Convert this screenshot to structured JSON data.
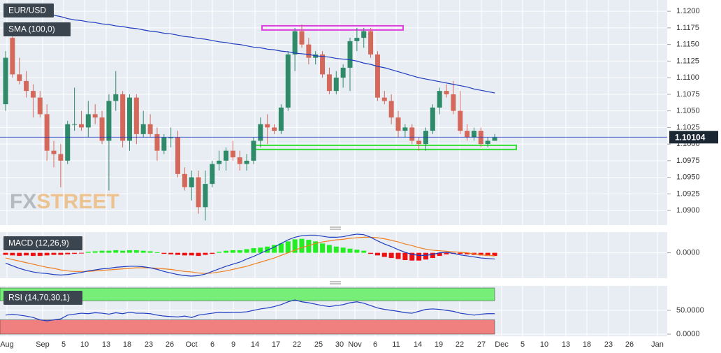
{
  "watermark": {
    "fx": "FX",
    "street": "STREET"
  },
  "chart_data": [
    {
      "type": "candlestick",
      "title": "EUR/USD",
      "up_color": "#2f8a6a",
      "down_color": "#d4685a",
      "ylim": [
        1.0878,
        1.1217
      ],
      "yticks": [
        {
          "value": 1.12,
          "label": "1.1200"
        },
        {
          "value": 1.1175,
          "label": "1.1175"
        },
        {
          "value": 1.115,
          "label": "1.1150"
        },
        {
          "value": 1.1125,
          "label": "1.1125"
        },
        {
          "value": 1.11,
          "label": "1.1100"
        },
        {
          "value": 1.1075,
          "label": "1.1075"
        },
        {
          "value": 1.105,
          "label": "1.1050"
        },
        {
          "value": 1.1025,
          "label": "1.1025"
        },
        {
          "value": 1.1,
          "label": "1.1000"
        },
        {
          "value": 1.0975,
          "label": "1.0975"
        },
        {
          "value": 1.095,
          "label": "1.0950"
        },
        {
          "value": 1.0925,
          "label": "1.0925"
        },
        {
          "value": 1.09,
          "label": "1.0900"
        }
      ],
      "xtick_labels": [
        "Aug",
        "Sep",
        "5",
        "10",
        "13",
        "18",
        "23",
        "26",
        "Oct",
        "6",
        "9",
        "14",
        "17",
        "22",
        "25",
        "30",
        "Nov",
        "6",
        "11",
        "14",
        "19",
        "22",
        "27",
        "Dec",
        "5",
        "10",
        "13",
        "18",
        "23",
        "26",
        "Jan"
      ],
      "open": [
        1.106,
        1.116,
        1.1105,
        1.1095,
        1.108,
        1.107,
        1.1045,
        1.099,
        1.0985,
        1.0975,
        1.103,
        1.103,
        1.1025,
        1.1045,
        1.104,
        1.1005,
        1.1065,
        1.1075,
        1.1005,
        1.107,
        1.1015,
        1.103,
        1.1015,
        1.099,
        1.101,
        1.101,
        1.0955,
        1.0935,
        1.095,
        1.0905,
        1.094,
        1.097,
        1.0975,
        1.099,
        1.098,
        1.097,
        1.0975,
        1.1005,
        1.103,
        1.1025,
        1.102,
        1.1055,
        1.1135,
        1.117,
        1.115,
        1.113,
        1.1135,
        1.1105,
        1.108,
        1.11,
        1.1115,
        1.1155,
        1.116,
        1.117,
        1.1135,
        1.107,
        1.1065,
        1.104,
        1.102,
        1.1025,
        1.1005,
        1.1,
        1.102,
        1.1055,
        1.108,
        1.1075,
        1.105,
        1.102,
        1.101,
        1.102,
        1.1,
        1.1005
      ],
      "high": [
        1.114,
        1.1175,
        1.113,
        1.111,
        1.109,
        1.108,
        1.106,
        1.1005,
        1.1,
        1.1035,
        1.1085,
        1.105,
        1.1065,
        1.106,
        1.105,
        1.1075,
        1.111,
        1.108,
        1.1075,
        1.1075,
        1.105,
        1.1045,
        1.1025,
        1.1015,
        1.1025,
        1.102,
        1.0965,
        1.096,
        1.096,
        1.096,
        1.0975,
        1.099,
        1.0995,
        1.1005,
        1.099,
        1.0985,
        1.101,
        1.104,
        1.1045,
        1.103,
        1.106,
        1.114,
        1.1175,
        1.118,
        1.116,
        1.114,
        1.114,
        1.1115,
        1.111,
        1.112,
        1.116,
        1.1175,
        1.1175,
        1.1175,
        1.114,
        1.108,
        1.1075,
        1.105,
        1.103,
        1.103,
        1.101,
        1.1025,
        1.106,
        1.1085,
        1.109,
        1.1095,
        1.108,
        1.103,
        1.1025,
        1.1025,
        1.101,
        1.1015
      ],
      "low": [
        1.105,
        1.11,
        1.109,
        1.107,
        1.104,
        1.104,
        1.0975,
        1.0965,
        1.0935,
        1.097,
        1.102,
        1.102,
        1.101,
        1.103,
        1.1,
        1.093,
        1.105,
        1.0995,
        1.099,
        1.1,
        1.101,
        1.101,
        1.0975,
        1.0985,
        1.0995,
        1.095,
        1.093,
        1.0915,
        1.0895,
        1.0885,
        1.0935,
        1.096,
        1.096,
        1.0975,
        1.096,
        1.096,
        1.097,
        1.0995,
        1.1,
        1.1015,
        1.1015,
        1.105,
        1.111,
        1.1145,
        1.112,
        1.112,
        1.11,
        1.1075,
        1.1075,
        1.1085,
        1.108,
        1.114,
        1.1145,
        1.113,
        1.1065,
        1.106,
        1.103,
        1.101,
        1.101,
        1.1,
        1.099,
        1.099,
        1.1015,
        1.1045,
        1.107,
        1.1045,
        1.1015,
        1.1005,
        1.1005,
        1.0995,
        1.0995,
        1.1005
      ],
      "close": [
        1.113,
        1.1105,
        1.1095,
        1.108,
        1.107,
        1.1045,
        1.099,
        1.0985,
        1.0975,
        1.103,
        1.103,
        1.1025,
        1.1045,
        1.104,
        1.1005,
        1.1065,
        1.1075,
        1.1005,
        1.107,
        1.1015,
        1.103,
        1.1015,
        1.099,
        1.101,
        1.101,
        1.0955,
        1.0935,
        1.095,
        1.0905,
        1.094,
        1.097,
        1.0975,
        1.099,
        1.098,
        1.097,
        1.0975,
        1.1005,
        1.103,
        1.1025,
        1.102,
        1.1055,
        1.1135,
        1.117,
        1.115,
        1.113,
        1.1135,
        1.1105,
        1.108,
        1.11,
        1.1115,
        1.1155,
        1.116,
        1.117,
        1.1135,
        1.107,
        1.1065,
        1.104,
        1.102,
        1.1025,
        1.1005,
        1.1,
        1.102,
        1.1055,
        1.108,
        1.1075,
        1.105,
        1.102,
        1.101,
        1.102,
        1.1,
        1.1005,
        1.101
      ],
      "series": [
        {
          "name": "SMA (100,0)",
          "color": "#1f3cc0",
          "values": [
            1.121,
            1.1208,
            1.1206,
            1.1203,
            1.1201,
            1.1198,
            1.1196,
            1.1194,
            1.1192,
            1.1189,
            1.1187,
            1.1186,
            1.1184,
            1.1183,
            1.1181,
            1.118,
            1.1178,
            1.1177,
            1.1175,
            1.1174,
            1.1172,
            1.117,
            1.1169,
            1.1167,
            1.1166,
            1.1164,
            1.1162,
            1.1161,
            1.1159,
            1.1158,
            1.1156,
            1.1154,
            1.1153,
            1.1151,
            1.115,
            1.1148,
            1.1146,
            1.1145,
            1.1143,
            1.1142,
            1.114,
            1.1139,
            1.1137,
            1.1136,
            1.1135,
            1.1133,
            1.1132,
            1.1131,
            1.1129,
            1.1128,
            1.1127,
            1.1125,
            1.1122,
            1.112,
            1.1117,
            1.1115,
            1.1112,
            1.1109,
            1.1106,
            1.1103,
            1.11,
            1.1098,
            1.1096,
            1.1094,
            1.1092,
            1.109,
            1.1088,
            1.1086,
            1.1083,
            1.1081,
            1.1079,
            1.1077
          ]
        }
      ],
      "levels": [
        {
          "value": 1.1175,
          "color": "#e040e0"
        },
        {
          "value": 1.0995,
          "color": "#33dd33"
        }
      ],
      "last_price": 1.10104,
      "last_price_color": "#1f3cc0"
    },
    {
      "type": "macd",
      "title": "MACD (12,26,9)",
      "ylim": [
        -0.0045,
        0.004
      ],
      "yticks": [
        {
          "value": 0,
          "label": "0.0000"
        }
      ],
      "up_color": "#22ee22",
      "down_color": "#ee1111",
      "macd_color": "#1f3cc0",
      "signal_color": "#f08020",
      "histogram": [
        -0.0004,
        -0.0005,
        -0.0006,
        -0.0005,
        -0.0006,
        -0.0006,
        -0.0005,
        -0.0004,
        -0.0004,
        -0.0003,
        -0.0002,
        -0.0001,
        0.0002,
        0.0003,
        0.0004,
        0.0004,
        0.0005,
        0.0004,
        0.0005,
        0.0005,
        0.0004,
        0.0003,
        0.0001,
        -0.0002,
        -0.0003,
        -0.0004,
        -0.0005,
        -0.0005,
        -0.0006,
        -0.0004,
        -0.0002,
        0.0002,
        0.0004,
        0.0005,
        0.0005,
        0.0007,
        0.0009,
        0.001,
        0.0012,
        0.0015,
        0.0018,
        0.0022,
        0.0026,
        0.0027,
        0.0025,
        0.0022,
        0.0018,
        0.0015,
        0.0012,
        0.001,
        0.0008,
        0.0006,
        0.0004,
        -0.0002,
        -0.0005,
        -0.0008,
        -0.001,
        -0.0012,
        -0.0014,
        -0.0015,
        -0.0015,
        -0.0013,
        -0.001,
        -0.0006,
        -0.0003,
        -0.0002,
        -0.0002,
        -0.0003,
        -0.0004,
        -0.0005,
        -0.0006,
        -0.0006
      ],
      "macd_line": [
        -0.002,
        -0.0025,
        -0.003,
        -0.0034,
        -0.0037,
        -0.0039,
        -0.004,
        -0.0042,
        -0.0043,
        -0.0042,
        -0.004,
        -0.0038,
        -0.0035,
        -0.0033,
        -0.0031,
        -0.003,
        -0.0028,
        -0.0027,
        -0.0026,
        -0.0026,
        -0.0027,
        -0.0029,
        -0.0032,
        -0.0036,
        -0.0039,
        -0.0042,
        -0.0044,
        -0.0045,
        -0.0044,
        -0.0041,
        -0.0036,
        -0.0031,
        -0.0026,
        -0.0022,
        -0.0018,
        -0.0012,
        -0.0007,
        -0.0001,
        0.0005,
        0.0011,
        0.0018,
        0.0025,
        0.003,
        0.0033,
        0.0034,
        0.0034,
        0.0032,
        0.003,
        0.003,
        0.0031,
        0.0034,
        0.0036,
        0.0035,
        0.003,
        0.0023,
        0.0017,
        0.0012,
        0.0006,
        0.0001,
        -0.0003,
        -0.0005,
        -0.0005,
        -0.0003,
        0.0,
        0.0001,
        -0.0001,
        -0.0004,
        -0.0006,
        -0.0008,
        -0.001,
        -0.0011,
        -0.0012
      ],
      "signal_line": [
        -0.001,
        -0.0013,
        -0.0016,
        -0.0019,
        -0.0022,
        -0.0025,
        -0.0028,
        -0.003,
        -0.0033,
        -0.0035,
        -0.0036,
        -0.0036,
        -0.0036,
        -0.0035,
        -0.0034,
        -0.0033,
        -0.0032,
        -0.0031,
        -0.003,
        -0.0029,
        -0.0029,
        -0.0029,
        -0.003,
        -0.0031,
        -0.0032,
        -0.0034,
        -0.0036,
        -0.0037,
        -0.0039,
        -0.004,
        -0.0039,
        -0.0037,
        -0.0035,
        -0.0032,
        -0.0029,
        -0.0026,
        -0.0022,
        -0.0018,
        -0.0014,
        -0.001,
        -0.0005,
        0.0,
        0.0005,
        0.001,
        0.0014,
        0.0018,
        0.0021,
        0.0023,
        0.0025,
        0.0026,
        0.0028,
        0.0029,
        0.003,
        0.003,
        0.0029,
        0.0027,
        0.0024,
        0.0021,
        0.0017,
        0.0014,
        0.001,
        0.0007,
        0.0005,
        0.0004,
        0.0003,
        0.0002,
        0.0001,
        0.0,
        -0.0002,
        -0.0004,
        -0.0005,
        -0.0006
      ]
    },
    {
      "type": "line",
      "title": "RSI (14,70,30,1)",
      "ylim": [
        0,
        100
      ],
      "yticks": [
        {
          "value": 0,
          "label": "0.0000"
        },
        {
          "value": 50,
          "label": "50.0000"
        }
      ],
      "overbought": 70,
      "oversold": 30,
      "overbought_color": "#77ee77",
      "oversold_color": "#f08080",
      "color": "#1f3cc0",
      "values": [
        40,
        42,
        40,
        38,
        35,
        30,
        28,
        30,
        32,
        40,
        42,
        44,
        43,
        45,
        44,
        42,
        45,
        43,
        46,
        44,
        44,
        43,
        40,
        38,
        37,
        36,
        38,
        35,
        40,
        42,
        44,
        46,
        45,
        46,
        46,
        47,
        50,
        53,
        55,
        58,
        62,
        68,
        72,
        68,
        66,
        63,
        60,
        58,
        60,
        62,
        66,
        68,
        65,
        60,
        55,
        52,
        50,
        48,
        45,
        44,
        48,
        52,
        53,
        52,
        50,
        48,
        44,
        42,
        40,
        42,
        43,
        43
      ]
    }
  ]
}
